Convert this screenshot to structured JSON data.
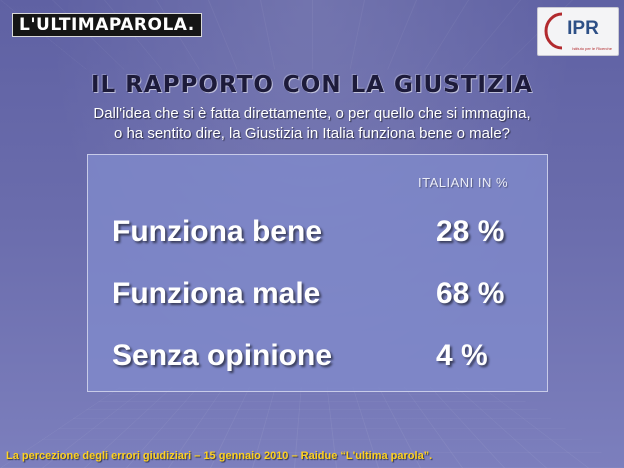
{
  "header": {
    "brand_logo": "L'ULTIMAPAROLA.",
    "partner_logo": "IPR",
    "partner_logo_subtext": "Istituto per le Ricerche"
  },
  "slide": {
    "title": "IL RAPPORTO CON LA GIUSTIZIA",
    "question_line_1": "Dall'idea che si è fatta direttamente, o per quello che si immagina,",
    "question_line_2": "o ha sentito dire, la Giustizia in Italia funziona bene o male?"
  },
  "results": {
    "column_header": "ITALIANI IN %",
    "rows": [
      {
        "label": "Funziona bene",
        "value": "28 %"
      },
      {
        "label": "Funziona male",
        "value": "68 %"
      },
      {
        "label": "Senza opinione",
        "value": "4 %"
      }
    ]
  },
  "footer": {
    "text": "La percezione degli errori giudiziari – 15 gennaio 2010 – Raidue “L'ultima parola”."
  }
}
